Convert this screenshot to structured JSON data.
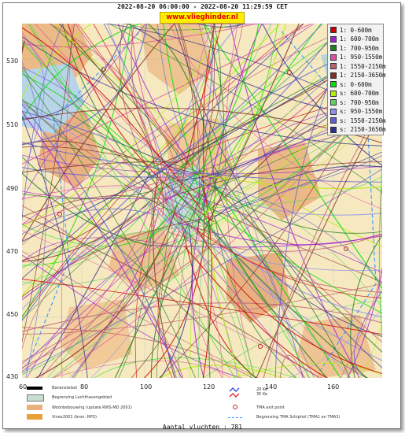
{
  "header": {
    "title": "2022-08-20 06:00:00 - 2022-08-20 11:29:59 CET",
    "brand": "www.vlieghinder.nl"
  },
  "axes": {
    "y_ticks": [
      "530",
      "510",
      "490",
      "470",
      "450",
      "430"
    ],
    "x_ticks": [
      "60",
      "80",
      "100",
      "120",
      "140",
      "160"
    ]
  },
  "legend": {
    "items": [
      {
        "label": "1: 0-600m",
        "color": "#d00000"
      },
      {
        "label": "1: 600-700m",
        "color": "#a020d0"
      },
      {
        "label": "1: 700-950m",
        "color": "#208020"
      },
      {
        "label": "1: 950-1550m",
        "color": "#e050a0"
      },
      {
        "label": "1: 1550-2150m",
        "color": "#c06070"
      },
      {
        "label": "1: 2150-3650m",
        "color": "#803020"
      },
      {
        "label": "s: 0-600m",
        "color": "#00e000"
      },
      {
        "label": "s: 600-700m",
        "color": "#b0f000"
      },
      {
        "label": "s: 700-950m",
        "color": "#60d060"
      },
      {
        "label": "s: 950-1550m",
        "color": "#9090f0"
      },
      {
        "label": "s: 1550-2150m",
        "color": "#6060d0"
      },
      {
        "label": "s: 2150-3650m",
        "color": "#303090"
      }
    ]
  },
  "map_legend": {
    "runway": "Banenstelsel",
    "airport_boundary": "Begrenzing Luchthavengebied",
    "housing": "Woonbebouwing (update RWS-MD 2001)",
    "vinex": "Vinex2001 (bron: RPD)",
    "ke": "20 Ke\n35 Ke",
    "exit_point": "TMA exit point",
    "tma_boundary": "Begrenzing TMA Schiphol  (TMA1 en TMA3)"
  },
  "footer": {
    "count": "Aantal vluchten : 781"
  },
  "colors": {
    "background_land": "#f6e9c0",
    "urban": "#e9a86d",
    "water": "#b8d4e8",
    "airport": "#c6dfd0"
  }
}
